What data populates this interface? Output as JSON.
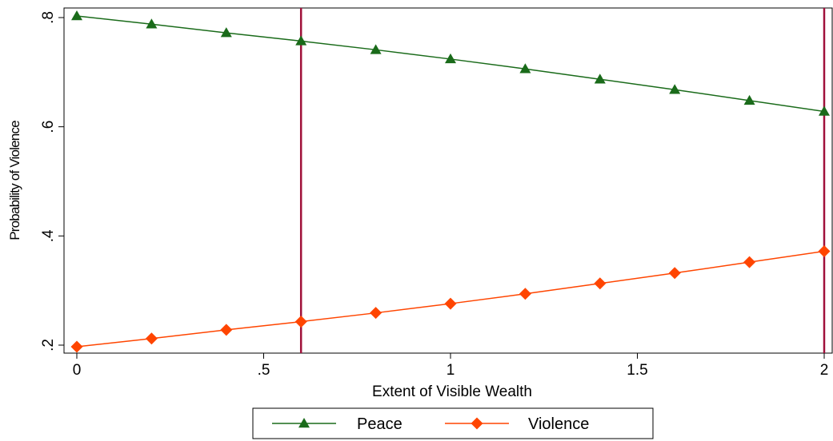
{
  "chart_data": {
    "type": "line",
    "xlabel": "Extent of Visible Wealth",
    "ylabel": "Probability of Violence",
    "xlim": [
      0,
      2
    ],
    "ylim": [
      0.2,
      0.8
    ],
    "x_ticks": [
      {
        "value": 0,
        "label": "0"
      },
      {
        "value": 0.5,
        "label": ".5"
      },
      {
        "value": 1,
        "label": "1"
      },
      {
        "value": 1.5,
        "label": "1.5"
      },
      {
        "value": 2,
        "label": "2"
      }
    ],
    "y_ticks": [
      {
        "value": 0.2,
        "label": ".2"
      },
      {
        "value": 0.4,
        "label": ".4"
      },
      {
        "value": 0.6,
        "label": ".6"
      },
      {
        "value": 0.8,
        "label": ".8"
      }
    ],
    "grid": false,
    "legend_position": "bottom",
    "x": [
      0,
      0.2,
      0.4,
      0.6,
      0.8,
      1.0,
      1.2,
      1.4,
      1.6,
      1.8,
      2.0
    ],
    "series": [
      {
        "name": "Peace",
        "color": "#1a6b1a",
        "marker": "triangle",
        "values": [
          0.803,
          0.788,
          0.772,
          0.757,
          0.741,
          0.724,
          0.706,
          0.687,
          0.668,
          0.648,
          0.628
        ]
      },
      {
        "name": "Violence",
        "color": "#ff4500",
        "marker": "diamond",
        "values": [
          0.197,
          0.212,
          0.228,
          0.243,
          0.259,
          0.276,
          0.294,
          0.313,
          0.332,
          0.352,
          0.372
        ]
      }
    ],
    "reference_lines": [
      {
        "axis": "x",
        "value": 0.6,
        "color": "#a0103a"
      },
      {
        "axis": "x",
        "value": 2.0,
        "color": "#a0103a"
      }
    ]
  }
}
